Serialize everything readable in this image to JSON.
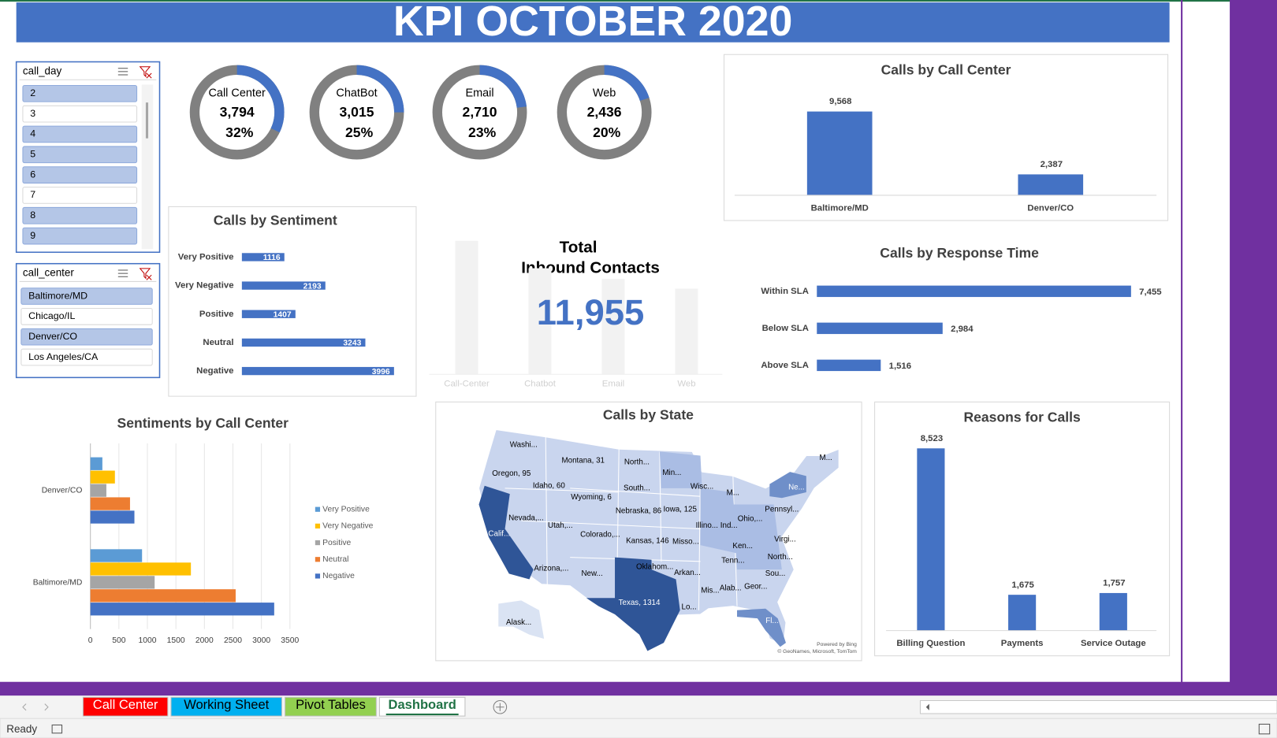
{
  "header": {
    "title": "KPI OCTOBER 2020"
  },
  "slicers": [
    {
      "title": "call_day",
      "items": [
        "2",
        "3",
        "4",
        "5",
        "6",
        "7",
        "8",
        "9"
      ],
      "selected": [
        true,
        false,
        true,
        true,
        true,
        false,
        true,
        true
      ]
    },
    {
      "title": "call_center",
      "items": [
        "Baltimore/MD",
        "Chicago/IL",
        "Denver/CO",
        "Los Angeles/CA"
      ],
      "selected": [
        true,
        false,
        true,
        false
      ]
    }
  ],
  "total": {
    "title": [
      "Total",
      "Inbound Contacts"
    ],
    "value": 11955,
    "value_label": "11,955",
    "color": "#4472c4"
  },
  "chart_data": [
    {
      "type": "donut",
      "categories": [
        "Call Center",
        "ChatBot",
        "Email",
        "Web"
      ],
      "values": [
        3794,
        3015,
        2710,
        2436
      ],
      "value_labels": [
        "3,794",
        "3,015",
        "2,710",
        "2,436"
      ],
      "percents": [
        32,
        25,
        23,
        20
      ],
      "percent_labels": [
        "32%",
        "25%",
        "23%",
        "20%"
      ],
      "color": "#4472c4",
      "track_color": "#808080"
    },
    {
      "type": "hbar",
      "title": "Calls by Sentiment",
      "categories": [
        "Very Positive",
        "Very Negative",
        "Positive",
        "Neutral",
        "Negative"
      ],
      "values": [
        1116,
        2193,
        1407,
        3243,
        3996
      ],
      "xlim": [
        0,
        4000
      ],
      "color": "#4472c4",
      "labels_inside": true
    },
    {
      "type": "bar",
      "title": "Calls by Call Center",
      "categories": [
        "Baltimore/MD",
        "Denver/CO"
      ],
      "values": [
        9568,
        2387
      ],
      "value_labels": [
        "9,568",
        "2,387"
      ],
      "ylim": [
        0,
        10000
      ],
      "color": "#4472c4"
    },
    {
      "type": "hbar",
      "title": "Calls by Response Time",
      "categories": [
        "Within SLA",
        "Below SLA",
        "Above SLA"
      ],
      "values": [
        7455,
        2984,
        1516
      ],
      "value_labels": [
        "7,455",
        "2,984",
        "1,516"
      ],
      "xlim": [
        0,
        8000
      ],
      "color": "#4472c4",
      "labels_inside": false
    },
    {
      "type": "grouped_hbar",
      "title": "Sentiments by Call Center",
      "categories": [
        "Denver/CO",
        "Baltimore/MD"
      ],
      "series": [
        {
          "name": "Very Positive",
          "color": "#5b9bd5",
          "values": [
            210,
            906
          ]
        },
        {
          "name": "Very Negative",
          "color": "#ffc000",
          "values": [
            430,
            1763
          ]
        },
        {
          "name": "Positive",
          "color": "#a5a5a5",
          "values": [
            280,
            1127
          ]
        },
        {
          "name": "Neutral",
          "color": "#ed7d31",
          "values": [
            695,
            2548
          ]
        },
        {
          "name": "Negative",
          "color": "#4472c4",
          "values": [
            772,
            3224
          ]
        }
      ],
      "xlim": [
        0,
        3500
      ],
      "xticks": [
        0,
        500,
        1000,
        1500,
        2000,
        2500,
        3000,
        3500
      ],
      "grid": true,
      "legend": "right"
    },
    {
      "type": "bar",
      "title": "Reasons for Calls",
      "categories": [
        "Billing Question",
        "Payments",
        "Service Outage"
      ],
      "values": [
        8523,
        1675,
        1757
      ],
      "value_labels": [
        "8,523",
        "1,675",
        "1,757"
      ],
      "ylim": [
        0,
        9000
      ],
      "color": "#4472c4"
    },
    {
      "type": "bar",
      "categories": [
        "Call-Center",
        "Chatbot",
        "Email",
        "Web"
      ],
      "values": [
        3794,
        3015,
        2710,
        2436
      ],
      "ylim": [
        0,
        3800
      ],
      "color": "#f2f2f2",
      "faded": true
    },
    {
      "type": "map",
      "title": "Calls by State",
      "regions": [
        {
          "label": "Washi...",
          "color": "#000000"
        },
        {
          "label": "Montana, 31",
          "color": "#000000"
        },
        {
          "label": "North...",
          "color": "#000000"
        },
        {
          "label": "Min...",
          "color": "#000000"
        },
        {
          "label": "Oregon, 95",
          "color": "#000000"
        },
        {
          "label": "Idaho, 60",
          "color": "#000000"
        },
        {
          "label": "South...",
          "color": "#000000"
        },
        {
          "label": "Wisc...",
          "color": "#000000"
        },
        {
          "label": "M...",
          "color": "#000000"
        },
        {
          "label": "Ne...",
          "color": "#ffffff"
        },
        {
          "label": "M...",
          "color": "#000000"
        },
        {
          "label": "Wyoming, 6",
          "color": "#000000"
        },
        {
          "label": "Nebraska, 86",
          "color": "#000000"
        },
        {
          "label": "Iowa, 125",
          "color": "#000000"
        },
        {
          "label": "Pennsyl...",
          "color": "#000000"
        },
        {
          "label": "Ohio,...",
          "color": "#000000"
        },
        {
          "label": "Nevada,...",
          "color": "#000000"
        },
        {
          "label": "Utah,...",
          "color": "#000000"
        },
        {
          "label": "Colorado,...",
          "color": "#000000"
        },
        {
          "label": "Kansas, 146",
          "color": "#000000"
        },
        {
          "label": "Misso...",
          "color": "#000000"
        },
        {
          "label": "Illino...",
          "color": "#000000"
        },
        {
          "label": "Ind...",
          "color": "#000000"
        },
        {
          "label": "Calif...",
          "color": "#ffffff"
        },
        {
          "label": "Virgi...",
          "color": "#000000"
        },
        {
          "label": "Ken...",
          "color": "#000000"
        },
        {
          "label": "Arizona,...",
          "color": "#000000"
        },
        {
          "label": "New...",
          "color": "#000000"
        },
        {
          "label": "Oklahom...",
          "color": "#000000"
        },
        {
          "label": "Arkan...",
          "color": "#000000"
        },
        {
          "label": "Tenn...",
          "color": "#000000"
        },
        {
          "label": "North...",
          "color": "#000000"
        },
        {
          "label": "Sou...",
          "color": "#000000"
        },
        {
          "label": "Texas, 1314",
          "color": "#ffffff"
        },
        {
          "label": "Mis...",
          "color": "#000000"
        },
        {
          "label": "Alab...",
          "color": "#000000"
        },
        {
          "label": "Geor...",
          "color": "#000000"
        },
        {
          "label": "Lo...",
          "color": "#000000"
        },
        {
          "label": "Fl...",
          "color": "#ffffff"
        },
        {
          "label": "Alask...",
          "color": "#000000"
        }
      ],
      "attribution": [
        "Powered by Bing",
        "© GeoNames, Microsoft, TomTom"
      ]
    }
  ],
  "tabs": [
    {
      "name": "Call Center",
      "color": "#ff0000",
      "text_color": "#ffffff",
      "active": false
    },
    {
      "name": "Working Sheet",
      "color": "#00b0f0",
      "text_color": "#000000",
      "active": false
    },
    {
      "name": "Pivot Tables",
      "color": "#92d050",
      "text_color": "#000000",
      "active": false
    },
    {
      "name": "Dashboard",
      "color": "#ffffff",
      "text_color": "#217346",
      "active": true
    }
  ],
  "status": "Ready"
}
